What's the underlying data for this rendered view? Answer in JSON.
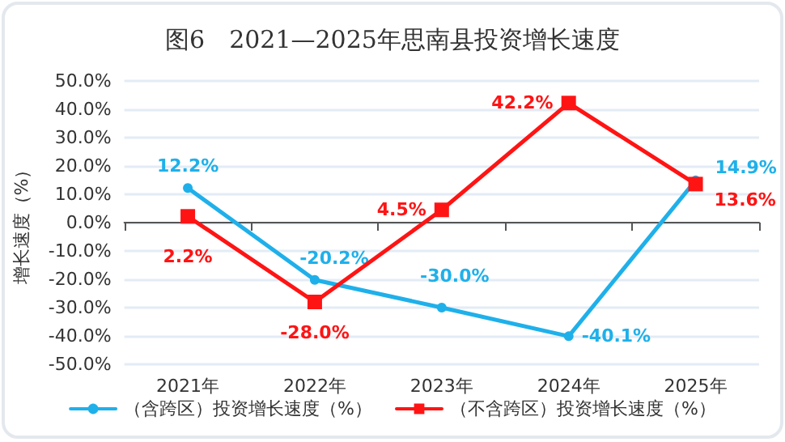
{
  "chart_data": {
    "type": "line",
    "title": "图6　2021—2025年思南县投资增长速度",
    "ylabel": "增长速度（%）",
    "categories": [
      "2021年",
      "2022年",
      "2023年",
      "2024年",
      "2025年"
    ],
    "series": [
      {
        "name": "（含跨区）投资增长速度（%）",
        "color": "#1fb0ea",
        "marker": "circle",
        "values": [
          12.2,
          -20.2,
          -30.0,
          -40.1,
          14.9
        ],
        "value_labels": [
          "12.2%",
          "-20.2%",
          "-30.0%",
          "-40.1%",
          "14.9%"
        ]
      },
      {
        "name": "（不含跨区）投资增长速度（%）",
        "color": "#ff1414",
        "marker": "square",
        "values": [
          2.2,
          -28.0,
          4.5,
          42.2,
          13.6
        ],
        "value_labels": [
          "2.2%",
          "-28.0%",
          "4.5%",
          "42.2%",
          "13.6%"
        ]
      }
    ],
    "ylim": [
      -50,
      50
    ],
    "yticks": [
      {
        "value": -50,
        "label": "-50.0%"
      },
      {
        "value": -40,
        "label": "-40.0%"
      },
      {
        "value": -30,
        "label": "-30.0%"
      },
      {
        "value": -20,
        "label": "-20.0%"
      },
      {
        "value": -10,
        "label": "-10.0%"
      },
      {
        "value": 0,
        "label": "0.0%"
      },
      {
        "value": 10,
        "label": "10.0%"
      },
      {
        "value": 20,
        "label": "20.0%"
      },
      {
        "value": 30,
        "label": "30.0%"
      },
      {
        "value": 40,
        "label": "40.0%"
      },
      {
        "value": 50,
        "label": "50.0%"
      }
    ],
    "grid": "y",
    "legend": "bottom",
    "line_style": "solid"
  }
}
